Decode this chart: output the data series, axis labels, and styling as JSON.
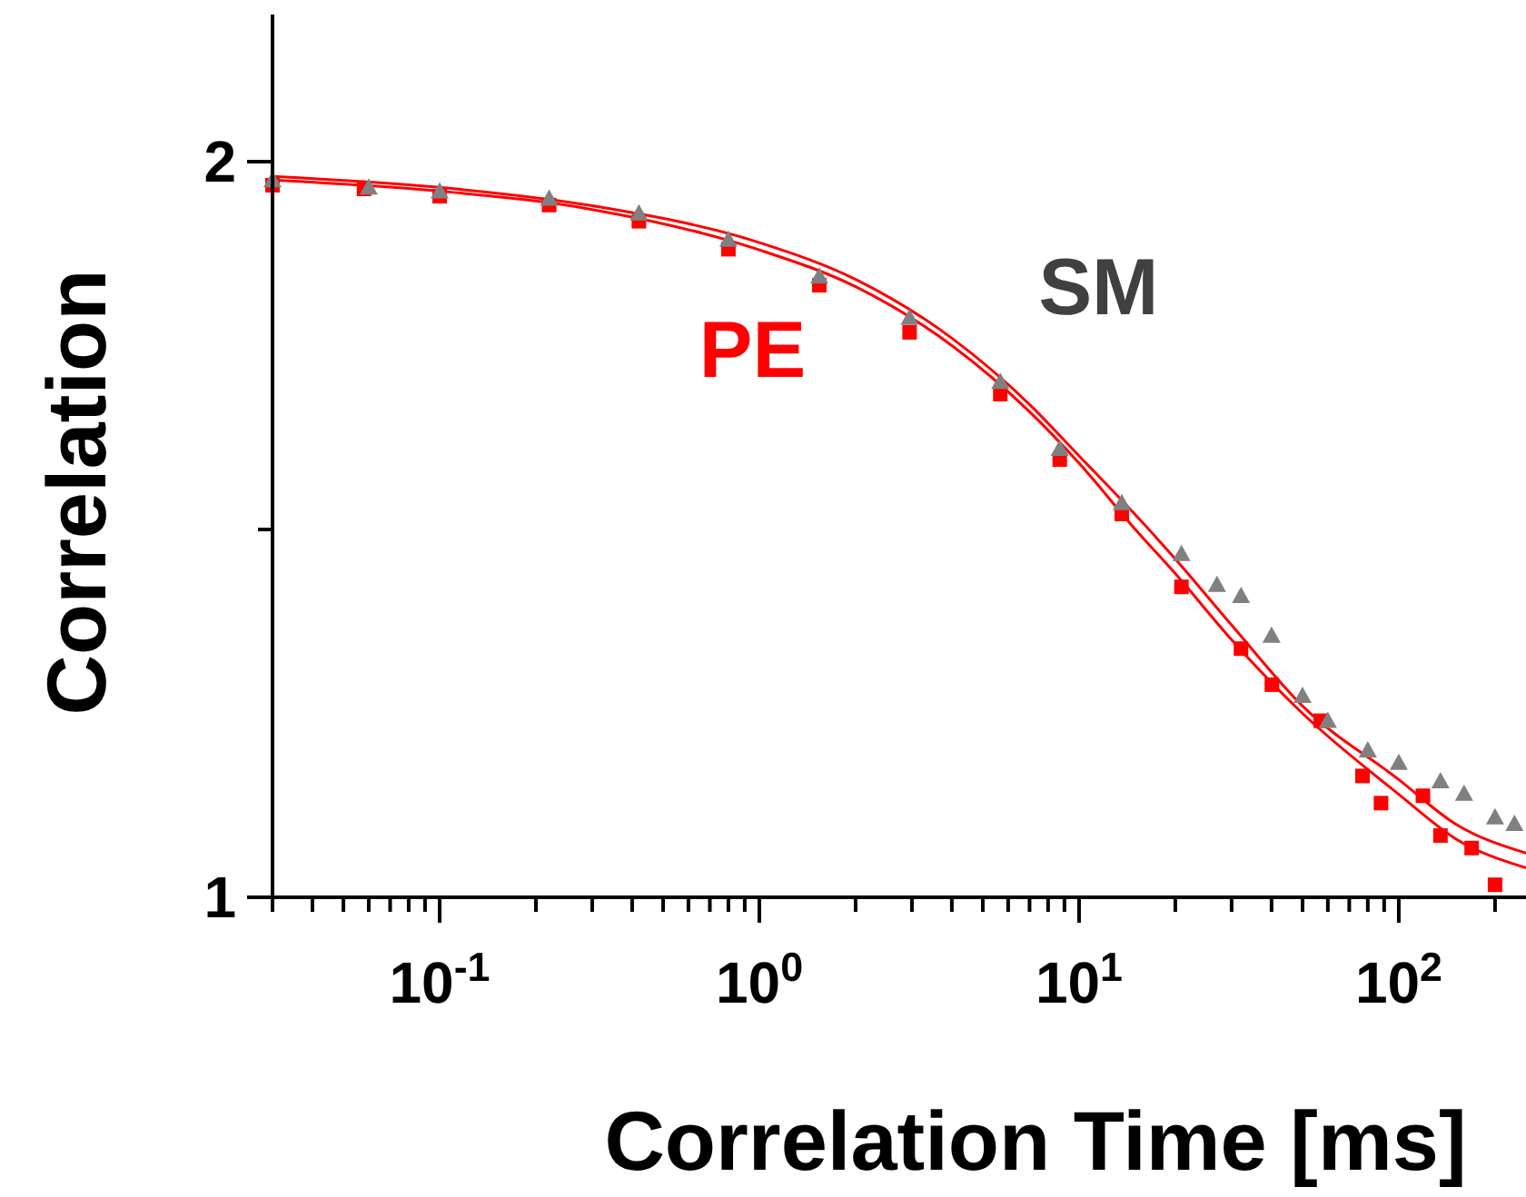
{
  "chart_data": {
    "type": "scatter",
    "xlabel": "Correlation Time [ms]",
    "ylabel": "Correlation",
    "log": "x",
    "xlim": [
      0.03,
      250
    ],
    "ylim": [
      1,
      2.2
    ],
    "xticks": [
      {
        "value": 0.03,
        "label": null
      },
      {
        "value": 0.04,
        "label": null
      },
      {
        "value": 0.05,
        "label": null
      },
      {
        "value": 0.06,
        "label": null
      },
      {
        "value": 0.07,
        "label": null
      },
      {
        "value": 0.08,
        "label": null
      },
      {
        "value": 0.09,
        "label": null
      },
      {
        "value": 0.1,
        "label": "10$^{-1}$"
      },
      {
        "value": 0.2,
        "label": null
      },
      {
        "value": 0.3,
        "label": null
      },
      {
        "value": 0.4,
        "label": null
      },
      {
        "value": 0.5,
        "label": null
      },
      {
        "value": 0.6,
        "label": null
      },
      {
        "value": 0.7,
        "label": null
      },
      {
        "value": 0.8,
        "label": null
      },
      {
        "value": 0.9,
        "label": null
      },
      {
        "value": 1,
        "label": "10$^{0}$"
      },
      {
        "value": 2,
        "label": null
      },
      {
        "value": 3,
        "label": null
      },
      {
        "value": 4,
        "label": null
      },
      {
        "value": 5,
        "label": null
      },
      {
        "value": 6,
        "label": null
      },
      {
        "value": 7,
        "label": null
      },
      {
        "value": 8,
        "label": null
      },
      {
        "value": 9,
        "label": null
      },
      {
        "value": 10,
        "label": "10$^{1}$"
      },
      {
        "value": 20,
        "label": null
      },
      {
        "value": 30,
        "label": null
      },
      {
        "value": 40,
        "label": null
      },
      {
        "value": 50,
        "label": null
      },
      {
        "value": 60,
        "label": null
      },
      {
        "value": 70,
        "label": null
      },
      {
        "value": 80,
        "label": null
      },
      {
        "value": 90,
        "label": null
      },
      {
        "value": 100,
        "label": "10$^{2}$"
      },
      {
        "value": 200,
        "label": null
      }
    ],
    "yticks": [
      1,
      {
        "value": 1.5,
        "label": null
      },
      2
    ],
    "grid": false,
    "series": [
      {
        "name": "SM",
        "marker": "triangle",
        "color": "#808080",
        "x": [
          0.03,
          0.06,
          0.1,
          0.22,
          0.42,
          0.8,
          1.54,
          2.95,
          5.67,
          8.7,
          13.6,
          20.9,
          27,
          32.1,
          40,
          50,
          60,
          80,
          100,
          135,
          160,
          200,
          230
        ],
        "values": [
          1.975,
          1.965,
          1.96,
          1.95,
          1.93,
          1.894,
          1.844,
          1.788,
          1.701,
          1.61,
          1.536,
          1.467,
          1.425,
          1.41,
          1.356,
          1.274,
          1.24,
          1.2,
          1.183,
          1.158,
          1.141,
          1.109,
          1.1
        ]
      },
      {
        "name": "PE",
        "marker": "square",
        "color": "#ff0000",
        "x": [
          0.03,
          0.058,
          0.1,
          0.22,
          0.42,
          0.8,
          1.54,
          2.95,
          5.67,
          8.7,
          13.6,
          20.9,
          32.1,
          40.1,
          57,
          77,
          88,
          119,
          135,
          169,
          200
        ],
        "values": [
          1.968,
          1.963,
          1.953,
          1.941,
          1.919,
          1.881,
          1.832,
          1.768,
          1.684,
          1.595,
          1.521,
          1.422,
          1.338,
          1.289,
          1.24,
          1.165,
          1.128,
          1.138,
          1.084,
          1.067,
          1.017
        ]
      },
      {
        "type": "line",
        "marker": "none",
        "color": "#ff0000",
        "x": [
          0.03,
          0.1,
          0.3,
          1,
          2,
          4,
          7,
          10,
          15,
          20,
          30,
          50,
          100,
          150,
          250
        ],
        "values": [
          1.98,
          1.965,
          1.94,
          1.89,
          1.84,
          1.76,
          1.67,
          1.6,
          1.52,
          1.46,
          1.37,
          1.26,
          1.16,
          1.1,
          1.06
        ]
      },
      {
        "type": "line",
        "marker": "none",
        "color": "#ff0000",
        "x": [
          0.03,
          0.1,
          0.3,
          1,
          2,
          4,
          7,
          10,
          15,
          20,
          30,
          50,
          100,
          150,
          250
        ],
        "values": [
          1.975,
          1.96,
          1.935,
          1.88,
          1.83,
          1.75,
          1.66,
          1.59,
          1.5,
          1.44,
          1.35,
          1.25,
          1.14,
          1.08,
          1.04
        ]
      }
    ]
  }
}
